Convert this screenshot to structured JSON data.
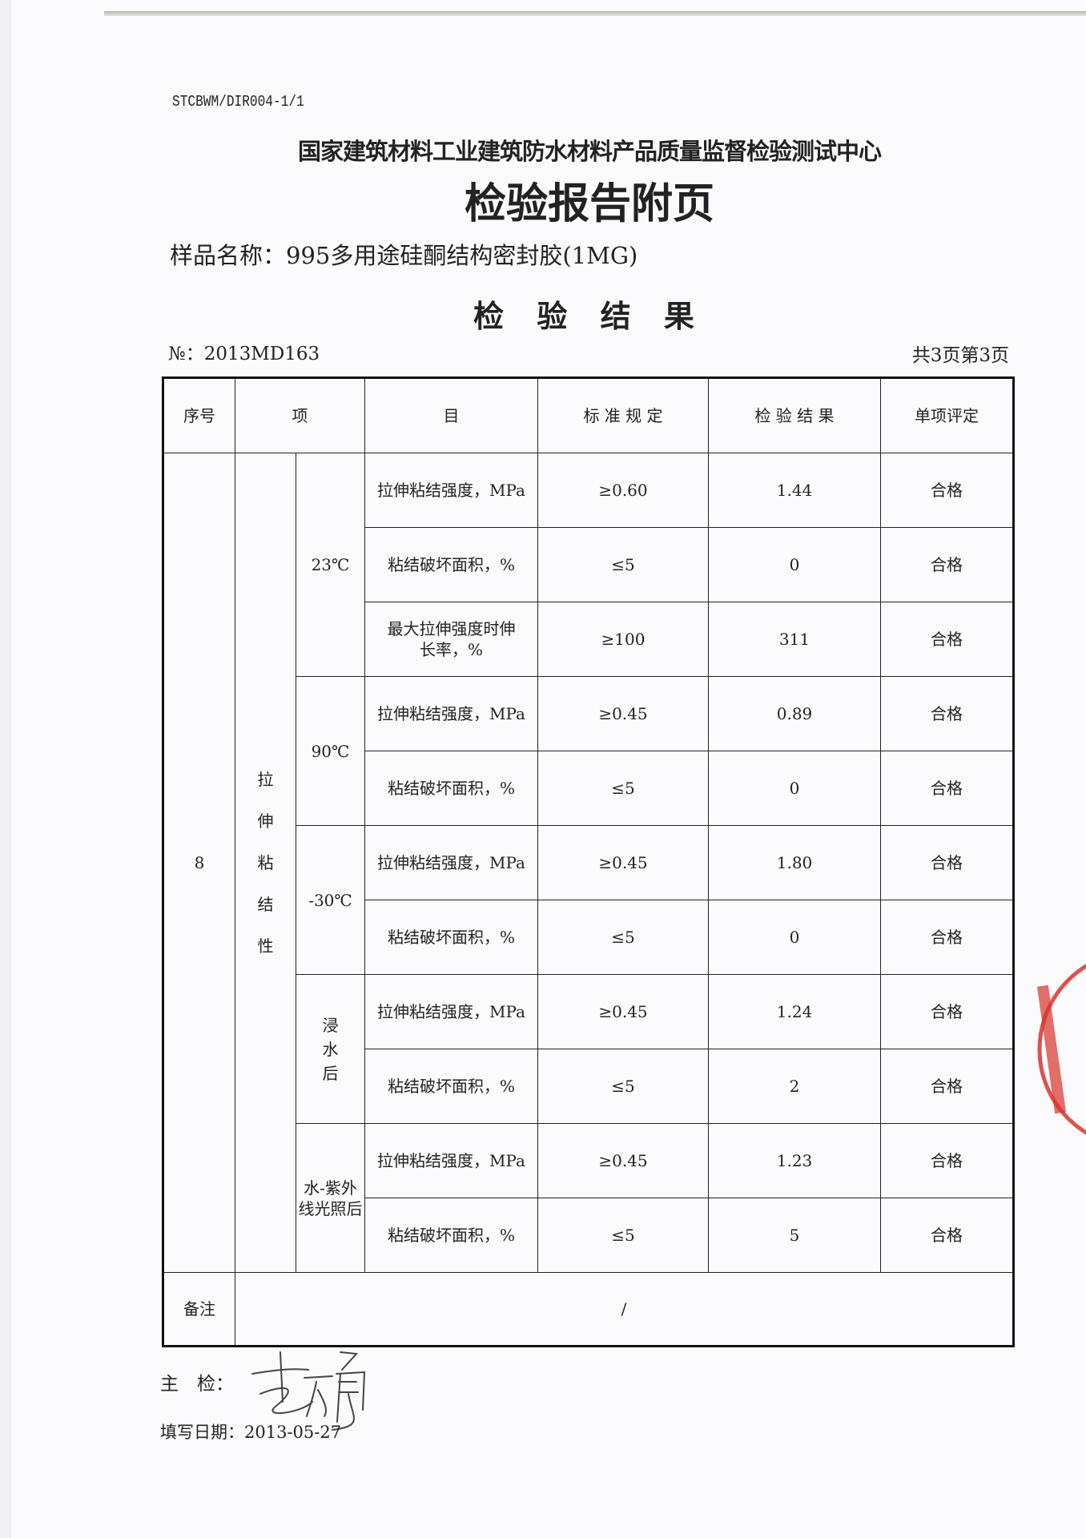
{
  "header": {
    "code": "STCBWM/DIR004-1/1",
    "org": "国家建筑材料工业建筑防水材料产品质量监督检验测试中心",
    "title": "检验报告附页",
    "sample_label": "样品名称：",
    "sample_name": "995多用途硅酮结构密封胶(1MG)",
    "subtitle": "检 验 结 果",
    "report_no": "№：2013MD163",
    "pages": "共3页第3页"
  },
  "table": {
    "headers": {
      "seq": "序号",
      "item_a": "项",
      "item_b": "目",
      "standard": "标 准 规 定",
      "result": "检 验 结 果",
      "verdict": "单项评定"
    },
    "seq": "8",
    "category": "拉伸粘结性",
    "conditions": [
      "23℃",
      "90℃",
      "-30℃",
      "浸水后",
      "水-紫外线光照后"
    ],
    "rows": [
      {
        "item": "拉伸粘结强度，MPa",
        "standard": "≥0.60",
        "result": "1.44",
        "verdict": "合格"
      },
      {
        "item": "粘结破坏面积，%",
        "standard": "≤5",
        "result": "0",
        "verdict": "合格"
      },
      {
        "item": "最大拉伸强度时伸长率，%",
        "standard": "≥100",
        "result": "311",
        "verdict": "合格"
      },
      {
        "item": "拉伸粘结强度，MPa",
        "standard": "≥0.45",
        "result": "0.89",
        "verdict": "合格"
      },
      {
        "item": "粘结破坏面积，%",
        "standard": "≤5",
        "result": "0",
        "verdict": "合格"
      },
      {
        "item": "拉伸粘结强度，MPa",
        "standard": "≥0.45",
        "result": "1.80",
        "verdict": "合格"
      },
      {
        "item": "粘结破坏面积，%",
        "standard": "≤5",
        "result": "0",
        "verdict": "合格"
      },
      {
        "item": "拉伸粘结强度，MPa",
        "standard": "≥0.45",
        "result": "1.24",
        "verdict": "合格"
      },
      {
        "item": "粘结破坏面积，%",
        "standard": "≤5",
        "result": "2",
        "verdict": "合格"
      },
      {
        "item": "拉伸粘结强度，MPa",
        "standard": "≥0.45",
        "result": "1.23",
        "verdict": "合格"
      },
      {
        "item": "粘结破坏面积，%",
        "standard": "≤5",
        "result": "5",
        "verdict": "合格"
      }
    ],
    "remarks_label": "备注",
    "remarks_value": "/"
  },
  "footer": {
    "inspector_label": "主　检：",
    "date_label": "填写日期：",
    "date": "2013-05-27",
    "signature": "李永勇"
  },
  "stamp": {
    "color": "#d9322b",
    "text": "国家建筑材料工业建筑防水材料产品质量监督检验测试中心"
  }
}
